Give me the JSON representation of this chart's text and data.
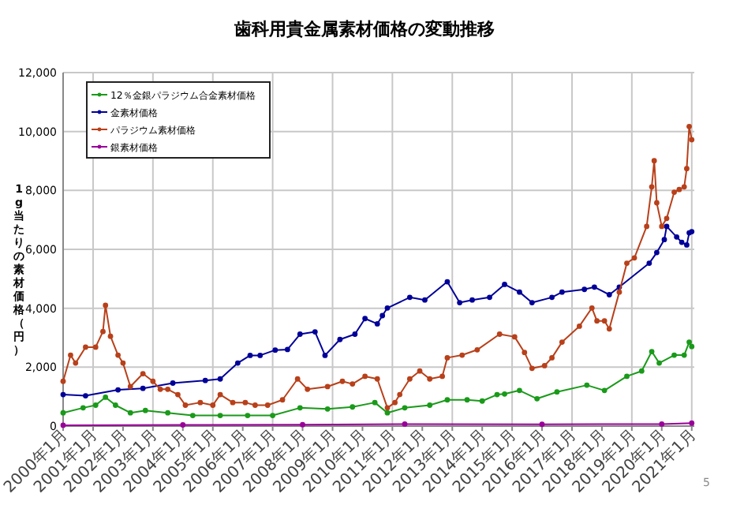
{
  "chart_data": {
    "type": "line",
    "title": "歯科用貴金属素材価格の変動推移",
    "ylabel": "1g当たりの素材価格（円）",
    "legend": "top left",
    "grid": true,
    "marker": "circle",
    "line_style": "solid",
    "xlim": [
      "2000-01",
      "2021-02"
    ],
    "xticks": [
      {
        "value": "2000-01",
        "label": "2000年1月"
      },
      {
        "value": "2001-01",
        "label": "2001年1月"
      },
      {
        "value": "2002-01",
        "label": "2002年1月"
      },
      {
        "value": "2003-01",
        "label": "2003年1月"
      },
      {
        "value": "2004-01",
        "label": "2004年1月"
      },
      {
        "value": "2005-01",
        "label": "2005年1月"
      },
      {
        "value": "2006-01",
        "label": "2006年1月"
      },
      {
        "value": "2007-01",
        "label": "2007年1月"
      },
      {
        "value": "2008-01",
        "label": "2008年1月"
      },
      {
        "value": "2009-01",
        "label": "2009年1月"
      },
      {
        "value": "2010-01",
        "label": "2010年1月"
      },
      {
        "value": "2011-01",
        "label": "2011年1月"
      },
      {
        "value": "2012-01",
        "label": "2012年1月"
      },
      {
        "value": "2013-01",
        "label": "2013年1月"
      },
      {
        "value": "2014-01",
        "label": "2014年1月"
      },
      {
        "value": "2015-01",
        "label": "2015年1月"
      },
      {
        "value": "2016-01",
        "label": "2016年1月"
      },
      {
        "value": "2017-01",
        "label": "2017年1月"
      },
      {
        "value": "2018-01",
        "label": "2018年1月"
      },
      {
        "value": "2019-01",
        "label": "2019年1月"
      },
      {
        "value": "2020-01",
        "label": "2020年1月"
      },
      {
        "value": "2021-01",
        "label": "2021年1月"
      }
    ],
    "ylim": [
      0,
      12000
    ],
    "yticks": [
      0,
      {
        "value": 2000,
        "label": "2,000"
      },
      {
        "value": 4000,
        "label": "4,000"
      },
      {
        "value": 6000,
        "label": "6,000"
      },
      {
        "value": 8000,
        "label": "8,000"
      },
      {
        "value": 10000,
        "label": "10,000"
      },
      {
        "value": 12000,
        "label": "12,000"
      }
    ],
    "annotations": [
      "5"
    ],
    "series": [
      {
        "name": "12％金銀パラジウム合金素材価格",
        "color": "#1a9a1a",
        "x": [
          "2000-01",
          "2000-09",
          "2001-02",
          "2001-06",
          "2001-10",
          "2002-04",
          "2002-10",
          "2003-07",
          "2004-05",
          "2005-04",
          "2006-03",
          "2007-01",
          "2007-12",
          "2008-11",
          "2009-09",
          "2010-06",
          "2010-11",
          "2011-06",
          "2012-04",
          "2012-11",
          "2013-07",
          "2014-01",
          "2014-07",
          "2014-10",
          "2015-04",
          "2015-11",
          "2016-07",
          "2017-07",
          "2018-02",
          "2018-11",
          "2019-05",
          "2019-09",
          "2019-12",
          "2020-06",
          "2020-10",
          "2020-12",
          "2021-01"
        ],
        "values": [
          450,
          620,
          710,
          980,
          710,
          450,
          530,
          450,
          360,
          360,
          360,
          360,
          620,
          580,
          650,
          800,
          450,
          620,
          710,
          890,
          890,
          850,
          1070,
          1090,
          1210,
          930,
          1160,
          1390,
          1210,
          1690,
          1870,
          2530,
          2140,
          2410,
          2410,
          2850,
          2700
        ]
      },
      {
        "name": "金素材価格",
        "color": "#000099",
        "x": [
          "2000-01",
          "2000-10",
          "2001-11",
          "2002-09",
          "2003-09",
          "2004-10",
          "2005-04",
          "2005-11",
          "2006-04",
          "2006-08",
          "2007-02",
          "2007-07",
          "2007-12",
          "2008-06",
          "2008-10",
          "2009-04",
          "2009-10",
          "2010-02",
          "2010-07",
          "2010-09",
          "2010-11",
          "2011-08",
          "2012-02",
          "2012-11",
          "2013-04",
          "2013-09",
          "2014-04",
          "2014-10",
          "2015-04",
          "2015-09",
          "2016-05",
          "2016-09",
          "2017-06",
          "2017-10",
          "2018-04",
          "2018-08",
          "2019-08",
          "2019-11",
          "2020-02",
          "2020-03",
          "2020-07",
          "2020-09",
          "2020-11",
          "2020-12",
          "2021-01"
        ],
        "values": [
          1070,
          1030,
          1230,
          1280,
          1460,
          1550,
          1600,
          2140,
          2400,
          2400,
          2580,
          2600,
          3120,
          3200,
          2400,
          2940,
          3120,
          3650,
          3470,
          3750,
          4010,
          4370,
          4280,
          4900,
          4190,
          4280,
          4370,
          4810,
          4550,
          4190,
          4370,
          4550,
          4640,
          4720,
          4460,
          4720,
          5530,
          5890,
          6330,
          6780,
          6420,
          6240,
          6150,
          6560,
          6600
        ]
      },
      {
        "name": "パラジウム素材価格",
        "color": "#b8401a",
        "x": [
          "2000-01",
          "2000-04",
          "2000-06",
          "2000-10",
          "2001-02",
          "2001-05",
          "2001-06",
          "2001-08",
          "2001-11",
          "2002-01",
          "2002-04",
          "2002-09",
          "2003-01",
          "2003-04",
          "2003-07",
          "2003-11",
          "2004-02",
          "2004-08",
          "2005-01",
          "2005-04",
          "2005-09",
          "2006-02",
          "2006-06",
          "2006-11",
          "2007-05",
          "2007-11",
          "2008-03",
          "2008-11",
          "2009-05",
          "2009-09",
          "2010-02",
          "2010-07",
          "2010-11",
          "2011-02",
          "2011-04",
          "2011-08",
          "2011-12",
          "2012-04",
          "2012-09",
          "2012-11",
          "2013-05",
          "2013-11",
          "2014-08",
          "2015-02",
          "2015-06",
          "2015-09",
          "2016-02",
          "2016-05",
          "2016-09",
          "2017-04",
          "2017-09",
          "2017-11",
          "2018-02",
          "2018-04",
          "2018-08",
          "2018-11",
          "2019-02",
          "2019-07",
          "2019-09",
          "2019-10",
          "2019-11",
          "2020-01",
          "2020-03",
          "2020-06",
          "2020-08",
          "2020-10",
          "2020-11",
          "2020-12",
          "2021-01"
        ],
        "values": [
          1520,
          2410,
          2140,
          2680,
          2680,
          3210,
          4100,
          3050,
          2410,
          2140,
          1340,
          1780,
          1520,
          1250,
          1250,
          1070,
          710,
          800,
          710,
          1070,
          800,
          800,
          710,
          710,
          890,
          1600,
          1250,
          1340,
          1520,
          1430,
          1690,
          1600,
          620,
          800,
          1070,
          1600,
          1870,
          1600,
          1690,
          2320,
          2410,
          2590,
          3120,
          3030,
          2500,
          1960,
          2050,
          2320,
          2850,
          3390,
          4010,
          3570,
          3570,
          3300,
          4550,
          5530,
          5710,
          6780,
          8120,
          9010,
          7580,
          6780,
          7050,
          7940,
          8030,
          8120,
          8740,
          10170,
          9720
        ]
      },
      {
        "name": "銀素材価格",
        "color": "#990099",
        "x": [
          "2000-01",
          "2004-01",
          "2008-01",
          "2011-06",
          "2016-01",
          "2020-01",
          "2021-01"
        ],
        "values": [
          30,
          40,
          50,
          70,
          60,
          70,
          100
        ]
      }
    ]
  }
}
